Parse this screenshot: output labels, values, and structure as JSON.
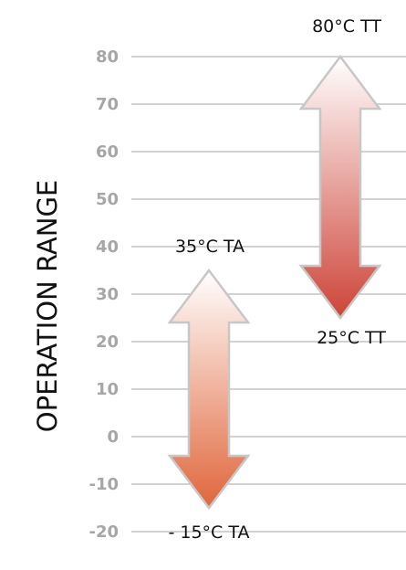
{
  "chart_data": {
    "type": "range-arrows",
    "ylabel": "OPERATION RANGE",
    "ylim": [
      -20,
      80
    ],
    "yticks": [
      80,
      70,
      60,
      50,
      40,
      30,
      20,
      10,
      0,
      -10,
      -20
    ],
    "grid": true,
    "series": [
      {
        "name": "TA",
        "low": -15,
        "high": 35,
        "low_label": "- 15°C TA",
        "high_label": "35°C TA",
        "color": "#e0663b"
      },
      {
        "name": "TT",
        "low": 25,
        "high": 80,
        "low_label": "25°C TT",
        "high_label": "80°C TT",
        "color": "#cd4438"
      }
    ]
  }
}
